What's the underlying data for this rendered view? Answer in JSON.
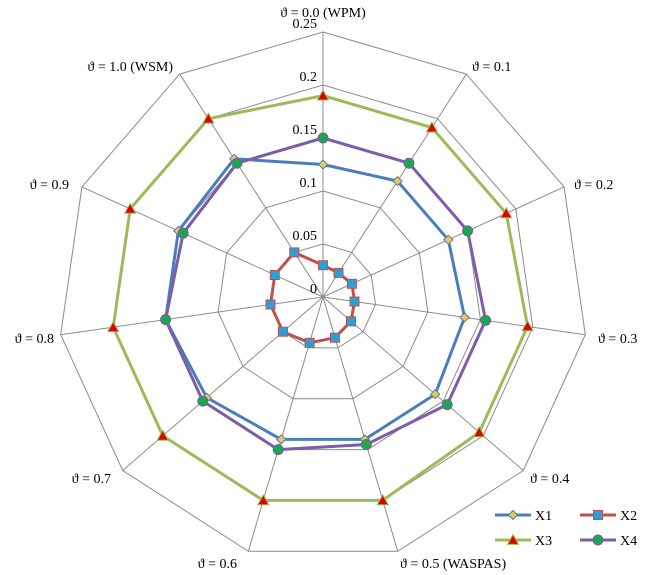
{
  "chart_data": {
    "type": "radar",
    "categories": [
      "ϑ = 0.0 (WPM)",
      "ϑ = 0.1",
      "ϑ = 0.2",
      "ϑ = 0.3",
      "ϑ = 0.4",
      "ϑ = 0.5 (WASPAS)",
      "ϑ = 0.6",
      "ϑ = 0.7",
      "ϑ = 0.8",
      "ϑ = 0.9",
      "ϑ = 1.0 (WSM)"
    ],
    "rlim": [
      0,
      0.25
    ],
    "ticks": [
      0,
      0.05,
      0.1,
      0.15,
      0.2,
      0.25
    ],
    "tick_labels": [
      "0",
      "0.05",
      "0.1",
      "0.15",
      "0.2",
      "0.25"
    ],
    "legend_position": "bottom-right",
    "series": [
      {
        "name": "X1",
        "color": "#4a7ebb",
        "marker": "diamond",
        "marker_color": "#f2c64b",
        "values": [
          0.125,
          0.13,
          0.13,
          0.135,
          0.14,
          0.14,
          0.14,
          0.145,
          0.15,
          0.15,
          0.155
        ]
      },
      {
        "name": "X2",
        "color": "#c0504d",
        "marker": "square",
        "marker_color": "#2e9fd6",
        "values": [
          0.03,
          0.027,
          0.03,
          0.03,
          0.035,
          0.04,
          0.045,
          0.05,
          0.05,
          0.05,
          0.05
        ]
      },
      {
        "name": "X3",
        "color": "#9bbb59",
        "marker": "triangle",
        "marker_color": "#e00000",
        "values": [
          0.19,
          0.19,
          0.19,
          0.195,
          0.195,
          0.2,
          0.2,
          0.2,
          0.2,
          0.2,
          0.2
        ]
      },
      {
        "name": "X4",
        "color": "#7b5ea7",
        "marker": "circle",
        "marker_color": "#19a84b",
        "values": [
          0.15,
          0.15,
          0.15,
          0.155,
          0.155,
          0.145,
          0.15,
          0.15,
          0.15,
          0.145,
          0.15
        ]
      }
    ]
  }
}
